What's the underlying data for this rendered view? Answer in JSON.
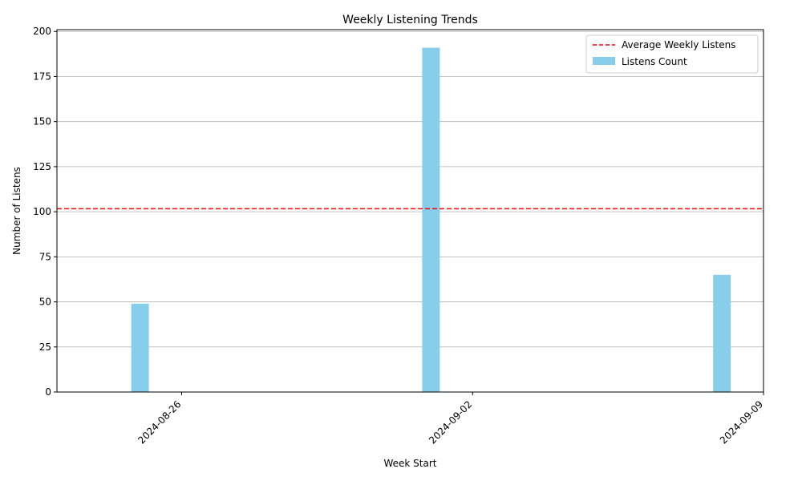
{
  "chart_data": {
    "type": "bar",
    "title": "Weekly Listening Trends",
    "xlabel": "Week Start",
    "ylabel": "Number of Listens",
    "x_ticks": [
      "2024-08-26",
      "2024-09-02",
      "2024-09-09"
    ],
    "x_range": [
      "2024-08-23",
      "2024-09-09"
    ],
    "ylim": [
      0,
      201
    ],
    "y_ticks": [
      0,
      25,
      50,
      75,
      100,
      125,
      150,
      175,
      200
    ],
    "grid": "y",
    "legend_position": "top-right",
    "series": [
      {
        "name": "Listens Count",
        "kind": "bar",
        "color": "#87CEEB",
        "points": [
          {
            "x": "2024-08-25",
            "y": 49
          },
          {
            "x": "2024-09-01",
            "y": 191
          },
          {
            "x": "2024-09-08",
            "y": 65
          }
        ]
      },
      {
        "name": "Average Weekly Listens",
        "kind": "hline",
        "color": "#FF0000",
        "style": "dashed",
        "y": 101.67
      }
    ]
  }
}
